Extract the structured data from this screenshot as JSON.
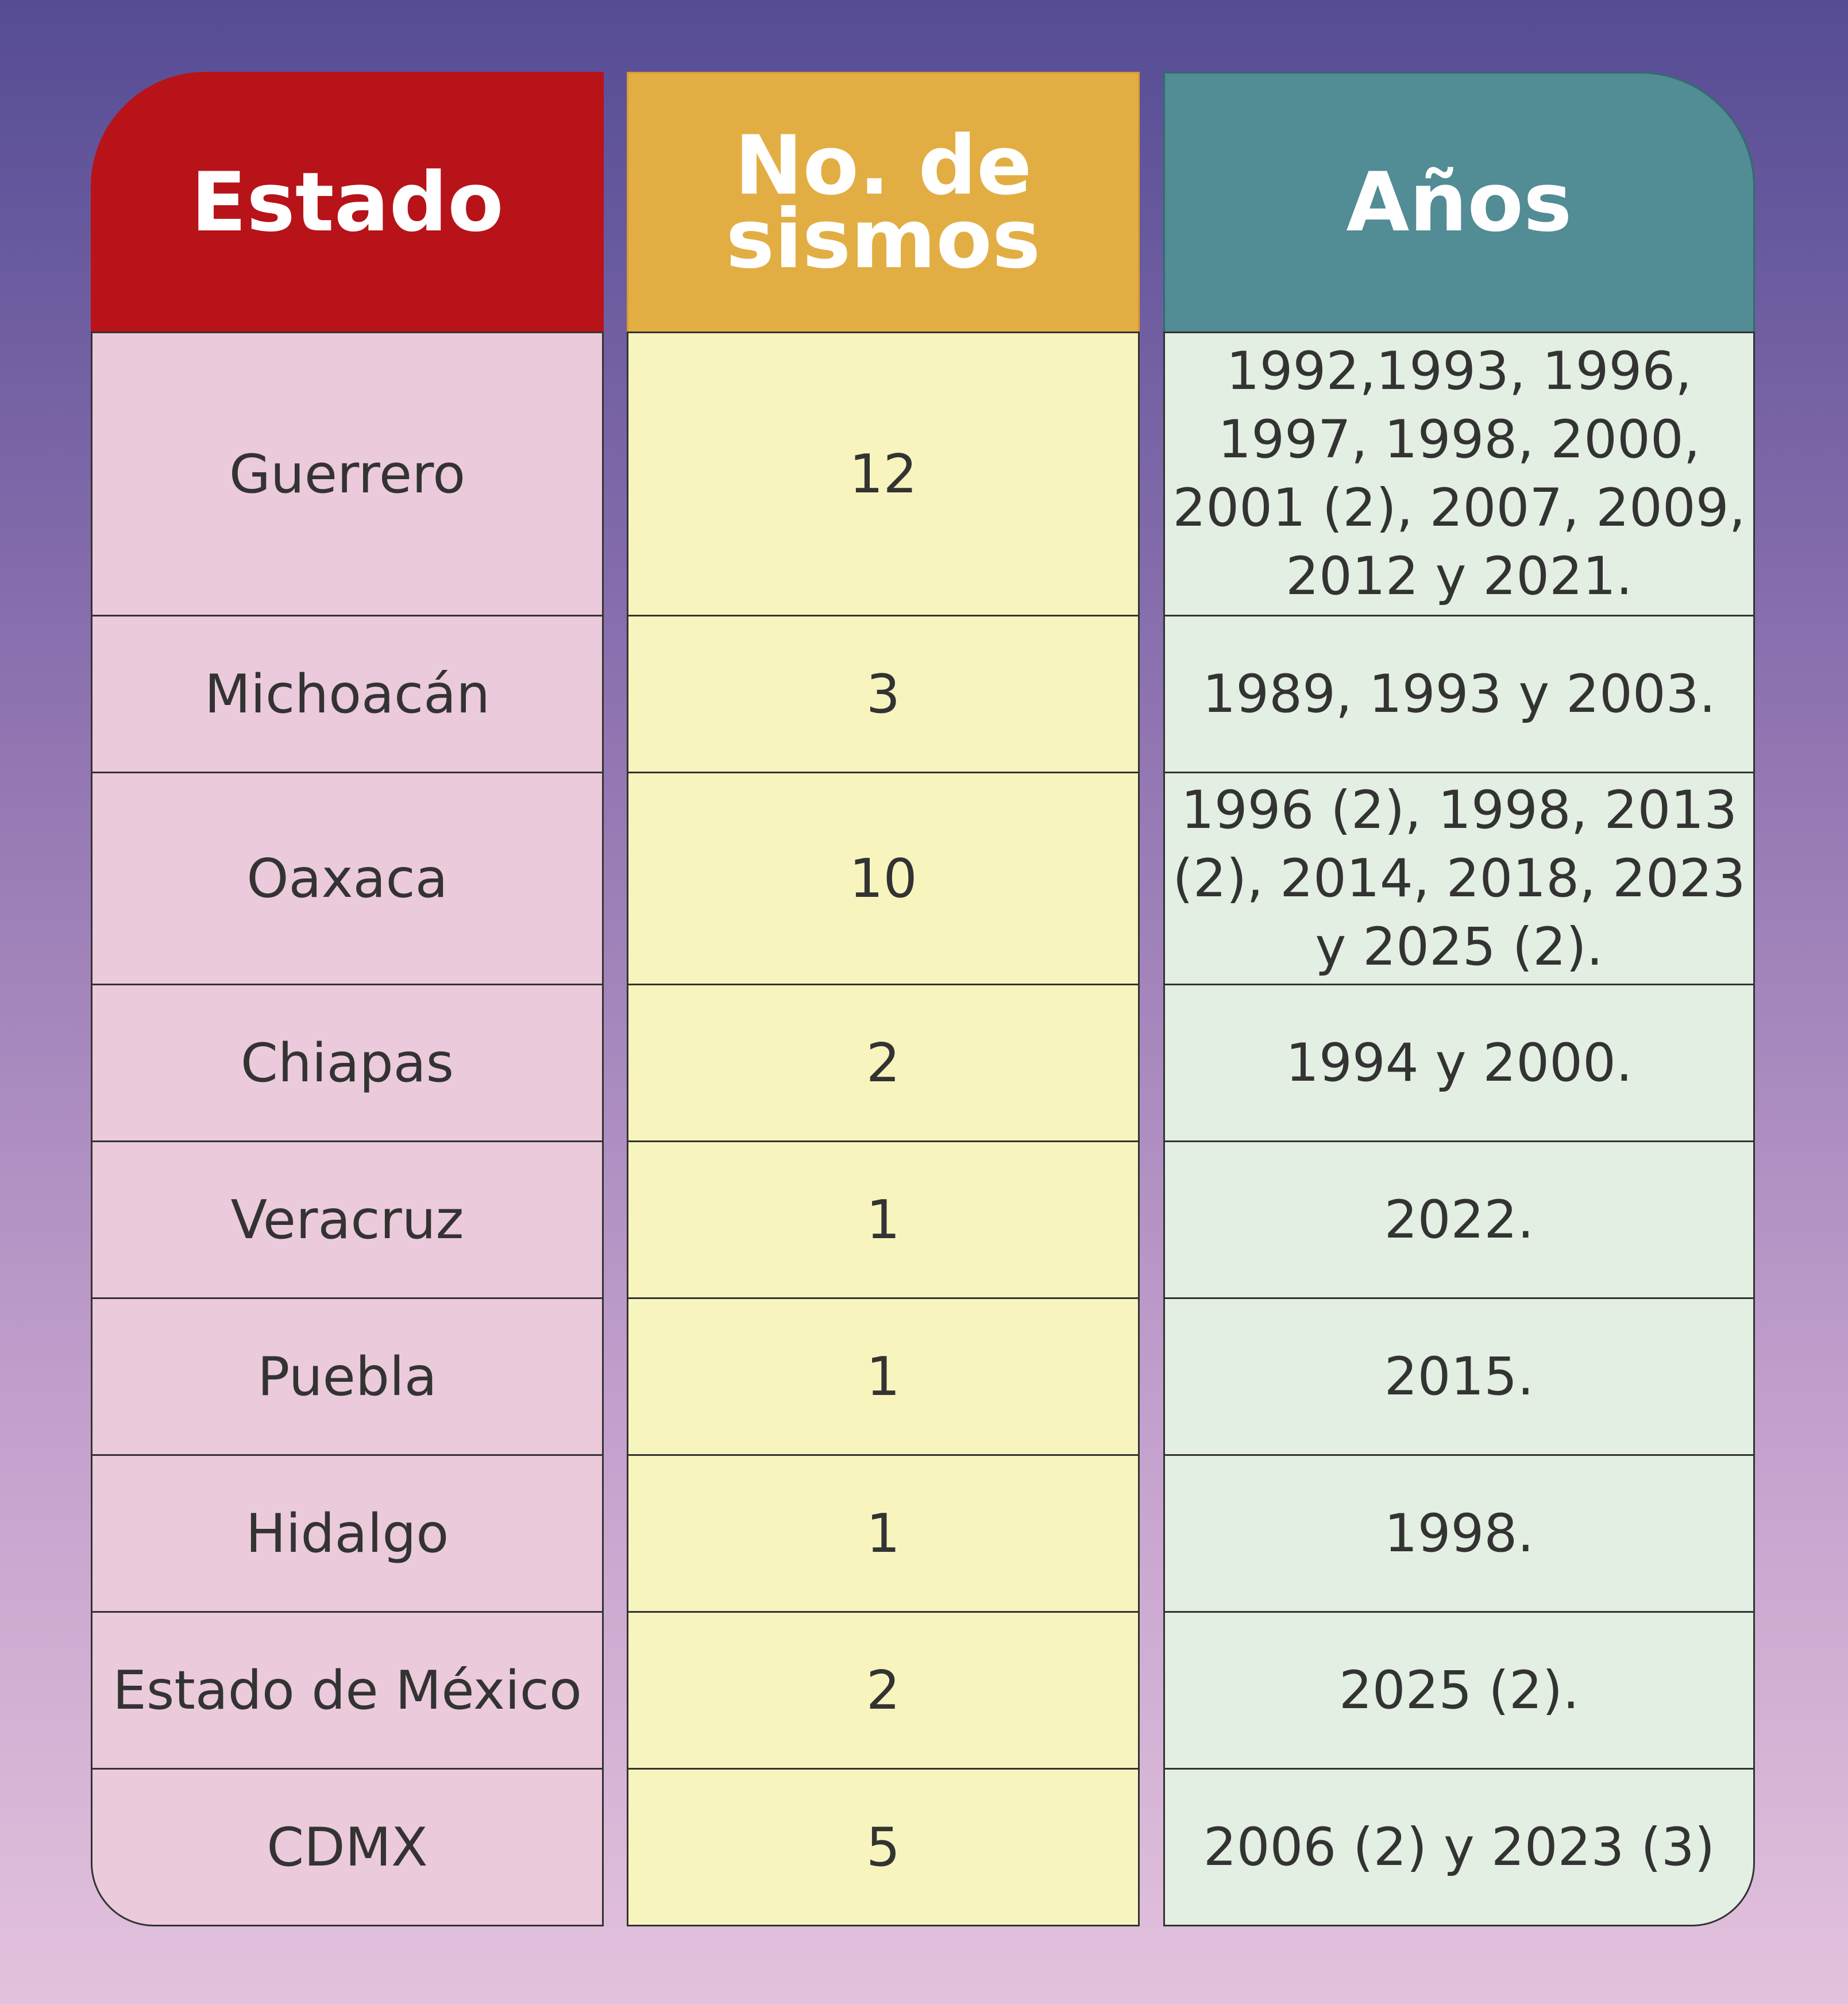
{
  "chart_data": {
    "type": "table",
    "columns": [
      "Estado",
      "No. de sismos",
      "Años"
    ],
    "rows": [
      {
        "estado": "Guerrero",
        "sismos": "12",
        "anos": "1992,1993, 1996, 1997, 1998, 2000, 2001 (2), 2007, 2009, 2012 y 2021."
      },
      {
        "estado": "Michoacán",
        "sismos": "3",
        "anos": "1989, 1993 y 2003."
      },
      {
        "estado": "Oaxaca",
        "sismos": "10",
        "anos": "1996 (2), 1998, 2013 (2), 2014, 2018, 2023 y 2025 (2)."
      },
      {
        "estado": "Chiapas",
        "sismos": "2",
        "anos": "1994 y 2000."
      },
      {
        "estado": "Veracruz",
        "sismos": "1",
        "anos": "2022."
      },
      {
        "estado": "Puebla",
        "sismos": "1",
        "anos": "2015."
      },
      {
        "estado": "Hidalgo",
        "sismos": "1",
        "anos": "1998."
      },
      {
        "estado": "Estado de México",
        "sismos": "2",
        "anos": "2025 (2)."
      },
      {
        "estado": "CDMX",
        "sismos": "5",
        "anos": "2006 (2) y 2023 (3)"
      }
    ]
  },
  "colors": {
    "estado_header": "#b71319",
    "sismos_header": "#e2ae43",
    "anos_header": "#528c95",
    "estado_cell": "#ebcadb",
    "sismos_cell": "#f7f5bd",
    "anos_cell": "#e3efe3"
  }
}
